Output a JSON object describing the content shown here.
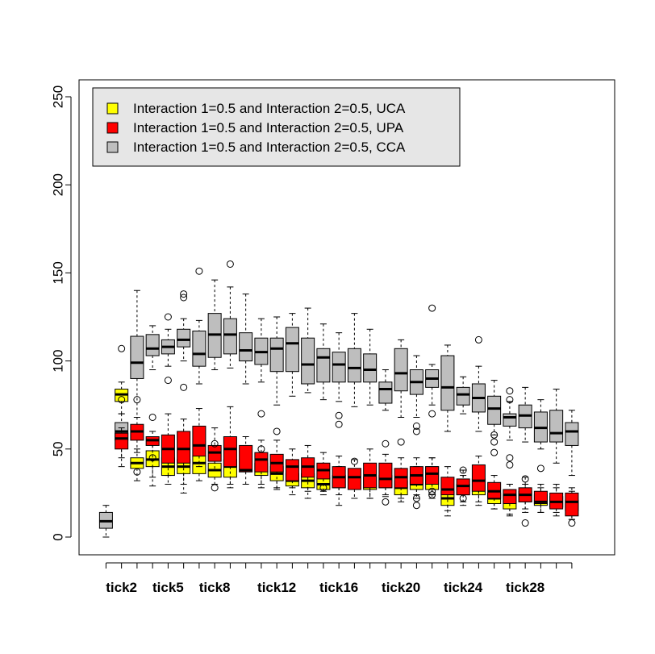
{
  "chart_data": {
    "type": "boxplot",
    "title": "",
    "xlabel": "",
    "ylabel": "",
    "ylim": [
      -10,
      260
    ],
    "yticks": [
      0,
      50,
      100,
      150,
      200,
      250
    ],
    "grid": false,
    "legend_position": "top-left",
    "x_tick_labels": [
      "tick2",
      "tick5",
      "tick8",
      "tick12",
      "tick16",
      "tick20",
      "tick24",
      "tick28"
    ],
    "series": [
      {
        "name": "Interaction 1=0.5 and Interaction 2=0.5, UCA",
        "color": "#ffff00"
      },
      {
        "name": "Interaction 1=0.5 and Interaction 2=0.5, UPA",
        "color": "#ff0000"
      },
      {
        "name": "Interaction 1=0.5 and Interaction 2=0.5, CCA",
        "color": "#bebebe"
      }
    ],
    "boxes": [
      {
        "tick": "tick1",
        "series": "CCA",
        "whisker_low": 0,
        "q1": 5,
        "median": 9,
        "q3": 14,
        "whisker_high": 18,
        "outliers": []
      },
      {
        "tick": "tick2",
        "series": "UCA",
        "whisker_low": 70,
        "q1": 77,
        "median": 81,
        "q3": 84,
        "whisker_high": 88,
        "outliers": [
          78
        ]
      },
      {
        "tick": "tick2",
        "series": "UPA",
        "whisker_low": 40,
        "q1": 50,
        "median": 56,
        "q3": 59,
        "whisker_high": 62,
        "outliers": []
      },
      {
        "tick": "tick2",
        "series": "CCA",
        "whisker_low": 45,
        "q1": 55,
        "median": 60,
        "q3": 65,
        "whisker_high": 70,
        "outliers": [
          107
        ]
      },
      {
        "tick": "tick3",
        "series": "UCA",
        "whisker_low": 32,
        "q1": 39,
        "median": 42,
        "q3": 45,
        "whisker_high": 50,
        "outliers": []
      },
      {
        "tick": "tick3",
        "series": "UPA",
        "whisker_low": 48,
        "q1": 55,
        "median": 60,
        "q3": 64,
        "whisker_high": 68,
        "outliers": [
          78,
          37
        ]
      },
      {
        "tick": "tick3",
        "series": "CCA",
        "whisker_low": 68,
        "q1": 90,
        "median": 99,
        "q3": 114,
        "whisker_high": 140,
        "outliers": []
      },
      {
        "tick": "tick4",
        "series": "UCA",
        "whisker_low": 34,
        "q1": 40,
        "median": 44,
        "q3": 49,
        "whisker_high": 55,
        "outliers": [
          45
        ]
      },
      {
        "tick": "tick4",
        "series": "UPA",
        "whisker_low": 29,
        "q1": 52,
        "median": 55,
        "q3": 57,
        "whisker_high": 60,
        "outliers": [
          68
        ]
      },
      {
        "tick": "tick4",
        "series": "CCA",
        "whisker_low": 95,
        "q1": 103,
        "median": 107,
        "q3": 115,
        "whisker_high": 120,
        "outliers": []
      },
      {
        "tick": "tick5",
        "series": "UCA",
        "whisker_low": 30,
        "q1": 35,
        "median": 40,
        "q3": 45,
        "whisker_high": 52,
        "outliers": []
      },
      {
        "tick": "tick5",
        "series": "UPA",
        "whisker_low": 35,
        "q1": 42,
        "median": 50,
        "q3": 58,
        "whisker_high": 70,
        "outliers": []
      },
      {
        "tick": "tick5",
        "series": "CCA",
        "whisker_low": 97,
        "q1": 104,
        "median": 108,
        "q3": 112,
        "whisker_high": 118,
        "outliers": [
          125,
          89
        ]
      },
      {
        "tick": "tick6",
        "series": "UCA",
        "whisker_low": 30,
        "q1": 36,
        "median": 40,
        "q3": 44,
        "whisker_high": 52,
        "outliers": []
      },
      {
        "tick": "tick6",
        "series": "UPA",
        "whisker_low": 25,
        "q1": 42,
        "median": 50,
        "q3": 60,
        "whisker_high": 67,
        "outliers": []
      },
      {
        "tick": "tick6",
        "series": "CCA",
        "whisker_low": 100,
        "q1": 108,
        "median": 112,
        "q3": 118,
        "whisker_high": 124,
        "outliers": [
          138,
          136,
          85
        ]
      },
      {
        "tick": "tick7",
        "series": "UCA",
        "whisker_low": 32,
        "q1": 36,
        "median": 42,
        "q3": 46,
        "whisker_high": 55,
        "outliers": []
      },
      {
        "tick": "tick7",
        "series": "UPA",
        "whisker_low": 40,
        "q1": 46,
        "median": 52,
        "q3": 63,
        "whisker_high": 73,
        "outliers": []
      },
      {
        "tick": "tick7",
        "series": "CCA",
        "whisker_low": 87,
        "q1": 97,
        "median": 104,
        "q3": 117,
        "whisker_high": 123,
        "outliers": [
          151
        ]
      },
      {
        "tick": "tick8",
        "series": "UCA",
        "whisker_low": 30,
        "q1": 34,
        "median": 38,
        "q3": 42,
        "whisker_high": 48,
        "outliers": [
          28
        ]
      },
      {
        "tick": "tick8",
        "series": "UPA",
        "whisker_low": 38,
        "q1": 43,
        "median": 48,
        "q3": 52,
        "whisker_high": 62,
        "outliers": [
          53
        ]
      },
      {
        "tick": "tick8",
        "series": "CCA",
        "whisker_low": 95,
        "q1": 102,
        "median": 115,
        "q3": 127,
        "whisker_high": 146,
        "outliers": []
      },
      {
        "tick": "tick9",
        "series": "UCA",
        "whisker_low": 28,
        "q1": 34,
        "median": 40,
        "q3": 44,
        "whisker_high": 50,
        "outliers": []
      },
      {
        "tick": "tick9",
        "series": "UPA",
        "whisker_low": 30,
        "q1": 40,
        "median": 50,
        "q3": 57,
        "whisker_high": 74,
        "outliers": []
      },
      {
        "tick": "tick9",
        "series": "CCA",
        "whisker_low": 96,
        "q1": 104,
        "median": 115,
        "q3": 124,
        "whisker_high": 142,
        "outliers": [
          155
        ]
      },
      {
        "tick": "tick10",
        "series": "UPA",
        "whisker_low": 30,
        "q1": 37,
        "median": 38,
        "q3": 52,
        "whisker_high": 57,
        "outliers": []
      },
      {
        "tick": "tick10",
        "series": "CCA",
        "whisker_low": 87,
        "q1": 100,
        "median": 106,
        "q3": 116,
        "whisker_high": 138,
        "outliers": []
      },
      {
        "tick": "tick11",
        "series": "UCA",
        "whisker_low": 30,
        "q1": 35,
        "median": 38,
        "q3": 42,
        "whisker_high": 48,
        "outliers": [
          50
        ]
      },
      {
        "tick": "tick11",
        "series": "UPA",
        "whisker_low": 28,
        "q1": 37,
        "median": 44,
        "q3": 48,
        "whisker_high": 55,
        "outliers": []
      },
      {
        "tick": "tick11",
        "series": "CCA",
        "whisker_low": 88,
        "q1": 98,
        "median": 105,
        "q3": 113,
        "whisker_high": 124,
        "outliers": [
          70
        ]
      },
      {
        "tick": "tick12",
        "series": "UCA",
        "whisker_low": 28,
        "q1": 32,
        "median": 36,
        "q3": 40,
        "whisker_high": 46,
        "outliers": [
          60
        ]
      },
      {
        "tick": "tick12",
        "series": "UPA",
        "whisker_low": 27,
        "q1": 37,
        "median": 42,
        "q3": 47,
        "whisker_high": 55,
        "outliers": []
      },
      {
        "tick": "tick12",
        "series": "CCA",
        "whisker_low": 75,
        "q1": 94,
        "median": 107,
        "q3": 113,
        "whisker_high": 125,
        "outliers": []
      },
      {
        "tick": "tick13",
        "series": "UCA",
        "whisker_low": 24,
        "q1": 29,
        "median": 32,
        "q3": 36,
        "whisker_high": 40,
        "outliers": []
      },
      {
        "tick": "tick13",
        "series": "UPA",
        "whisker_low": 28,
        "q1": 32,
        "median": 40,
        "q3": 44,
        "whisker_high": 50,
        "outliers": []
      },
      {
        "tick": "tick13",
        "series": "CCA",
        "whisker_low": 80,
        "q1": 94,
        "median": 110,
        "q3": 119,
        "whisker_high": 127,
        "outliers": []
      },
      {
        "tick": "tick14",
        "series": "UCA",
        "whisker_low": 22,
        "q1": 28,
        "median": 32,
        "q3": 36,
        "whisker_high": 44,
        "outliers": []
      },
      {
        "tick": "tick14",
        "series": "UPA",
        "whisker_low": 26,
        "q1": 34,
        "median": 40,
        "q3": 45,
        "whisker_high": 52,
        "outliers": []
      },
      {
        "tick": "tick14",
        "series": "CCA",
        "whisker_low": 82,
        "q1": 87,
        "median": 98,
        "q3": 113,
        "whisker_high": 130,
        "outliers": []
      },
      {
        "tick": "tick15",
        "series": "UCA",
        "whisker_low": 24,
        "q1": 27,
        "median": 30,
        "q3": 34,
        "whisker_high": 38,
        "outliers": [
          28
        ]
      },
      {
        "tick": "tick15",
        "series": "UPA",
        "whisker_low": 26,
        "q1": 33,
        "median": 38,
        "q3": 42,
        "whisker_high": 48,
        "outliers": []
      },
      {
        "tick": "tick15",
        "series": "CCA",
        "whisker_low": 78,
        "q1": 88,
        "median": 102,
        "q3": 107,
        "whisker_high": 121,
        "outliers": []
      },
      {
        "tick": "tick16",
        "series": "UCA",
        "whisker_low": 24,
        "q1": 28,
        "median": 31,
        "q3": 35,
        "whisker_high": 40,
        "outliers": []
      },
      {
        "tick": "tick16",
        "series": "UPA",
        "whisker_low": 18,
        "q1": 28,
        "median": 34,
        "q3": 40,
        "whisker_high": 46,
        "outliers": []
      },
      {
        "tick": "tick16",
        "series": "CCA",
        "whisker_low": 77,
        "q1": 88,
        "median": 98,
        "q3": 105,
        "whisker_high": 116,
        "outliers": [
          69,
          64
        ]
      },
      {
        "tick": "tick17",
        "series": "UPA",
        "whisker_low": 22,
        "q1": 27,
        "median": 34,
        "q3": 39,
        "whisker_high": 44,
        "outliers": [
          43
        ]
      },
      {
        "tick": "tick17",
        "series": "CCA",
        "whisker_low": 74,
        "q1": 88,
        "median": 96,
        "q3": 107,
        "whisker_high": 127,
        "outliers": []
      },
      {
        "tick": "tick18",
        "series": "UCA",
        "whisker_low": 22,
        "q1": 27,
        "median": 30,
        "q3": 34,
        "whisker_high": 40,
        "outliers": []
      },
      {
        "tick": "tick18",
        "series": "UPA",
        "whisker_low": 22,
        "q1": 28,
        "median": 35,
        "q3": 42,
        "whisker_high": 50,
        "outliers": []
      },
      {
        "tick": "tick18",
        "series": "CCA",
        "whisker_low": 75,
        "q1": 88,
        "median": 95,
        "q3": 104,
        "whisker_high": 118,
        "outliers": []
      },
      {
        "tick": "tick19",
        "series": "UCA",
        "whisker_low": 24,
        "q1": 28,
        "median": 31,
        "q3": 35,
        "whisker_high": 40,
        "outliers": [
          20
        ]
      },
      {
        "tick": "tick19",
        "series": "UPA",
        "whisker_low": 23,
        "q1": 28,
        "median": 33,
        "q3": 42,
        "whisker_high": 47,
        "outliers": [
          53
        ]
      },
      {
        "tick": "tick19",
        "series": "CCA",
        "whisker_low": 72,
        "q1": 76,
        "median": 84,
        "q3": 88,
        "whisker_high": 95,
        "outliers": []
      },
      {
        "tick": "tick20",
        "series": "UCA",
        "whisker_low": 20,
        "q1": 24,
        "median": 28,
        "q3": 32,
        "whisker_high": 37,
        "outliers": []
      },
      {
        "tick": "tick20",
        "series": "UPA",
        "whisker_low": 22,
        "q1": 28,
        "median": 34,
        "q3": 39,
        "whisker_high": 45,
        "outliers": [
          54
        ]
      },
      {
        "tick": "tick20",
        "series": "CCA",
        "whisker_low": 68,
        "q1": 83,
        "median": 93,
        "q3": 107,
        "whisker_high": 112,
        "outliers": []
      },
      {
        "tick": "tick21",
        "series": "UCA",
        "whisker_low": 22,
        "q1": 27,
        "median": 30,
        "q3": 34,
        "whisker_high": 40,
        "outliers": [
          22,
          18
        ]
      },
      {
        "tick": "tick21",
        "series": "UPA",
        "whisker_low": 24,
        "q1": 30,
        "median": 35,
        "q3": 40,
        "whisker_high": 45,
        "outliers": []
      },
      {
        "tick": "tick21",
        "series": "CCA",
        "whisker_low": 68,
        "q1": 81,
        "median": 88,
        "q3": 95,
        "whisker_high": 103,
        "outliers": [
          63,
          60
        ]
      },
      {
        "tick": "tick22",
        "series": "UCA",
        "whisker_low": 22,
        "q1": 27,
        "median": 32,
        "q3": 40,
        "whisker_high": 45,
        "outliers": [
          24,
          26
        ]
      },
      {
        "tick": "tick22",
        "series": "UPA",
        "whisker_low": 24,
        "q1": 30,
        "median": 36,
        "q3": 40,
        "whisker_high": 45,
        "outliers": []
      },
      {
        "tick": "tick22",
        "series": "CCA",
        "whisker_low": 75,
        "q1": 85,
        "median": 90,
        "q3": 95,
        "whisker_high": 98,
        "outliers": [
          130,
          70
        ]
      },
      {
        "tick": "tick23",
        "series": "UCA",
        "whisker_low": 12,
        "q1": 18,
        "median": 22,
        "q3": 26,
        "whisker_high": 32,
        "outliers": []
      },
      {
        "tick": "tick23",
        "series": "UPA",
        "whisker_low": 15,
        "q1": 24,
        "median": 27,
        "q3": 34,
        "whisker_high": 40,
        "outliers": []
      },
      {
        "tick": "tick23",
        "series": "CCA",
        "whisker_low": 60,
        "q1": 72,
        "median": 85,
        "q3": 103,
        "whisker_high": 109,
        "outliers": []
      },
      {
        "tick": "tick24",
        "series": "UCA",
        "whisker_low": 20,
        "q1": 24,
        "median": 27,
        "q3": 30,
        "whisker_high": 35,
        "outliers": [
          38,
          22
        ]
      },
      {
        "tick": "tick24",
        "series": "UPA",
        "whisker_low": 18,
        "q1": 24,
        "median": 29,
        "q3": 33,
        "whisker_high": 38,
        "outliers": []
      },
      {
        "tick": "tick24",
        "series": "CCA",
        "whisker_low": 70,
        "q1": 75,
        "median": 81,
        "q3": 85,
        "whisker_high": 91,
        "outliers": []
      },
      {
        "tick": "tick25",
        "series": "UCA",
        "whisker_low": 18,
        "q1": 24,
        "median": 29,
        "q3": 33,
        "whisker_high": 40,
        "outliers": []
      },
      {
        "tick": "tick25",
        "series": "UPA",
        "whisker_low": 20,
        "q1": 26,
        "median": 32,
        "q3": 41,
        "whisker_high": 46,
        "outliers": []
      },
      {
        "tick": "tick25",
        "series": "CCA",
        "whisker_low": 60,
        "q1": 71,
        "median": 79,
        "q3": 87,
        "whisker_high": 97,
        "outliers": [
          112
        ]
      },
      {
        "tick": "tick26",
        "series": "UCA",
        "whisker_low": 16,
        "q1": 19,
        "median": 22,
        "q3": 25,
        "whisker_high": 30,
        "outliers": []
      },
      {
        "tick": "tick26",
        "series": "UPA",
        "whisker_low": 16,
        "q1": 22,
        "median": 26,
        "q3": 31,
        "whisker_high": 35,
        "outliers": [
          58,
          54,
          48
        ]
      },
      {
        "tick": "tick26",
        "series": "CCA",
        "whisker_low": 58,
        "q1": 64,
        "median": 73,
        "q3": 80,
        "whisker_high": 89,
        "outliers": []
      },
      {
        "tick": "tick27",
        "series": "UCA",
        "whisker_low": 12,
        "q1": 16,
        "median": 20,
        "q3": 24,
        "whisker_high": 30,
        "outliers": []
      },
      {
        "tick": "tick27",
        "series": "UPA",
        "whisker_low": 13,
        "q1": 19,
        "median": 24,
        "q3": 27,
        "whisker_high": 30,
        "outliers": [
          45,
          41
        ]
      },
      {
        "tick": "tick27",
        "series": "CCA",
        "whisker_low": 55,
        "q1": 63,
        "median": 68,
        "q3": 70,
        "whisker_high": 77,
        "outliers": [
          83,
          78
        ]
      },
      {
        "tick": "tick28",
        "series": "UCA",
        "whisker_low": 16,
        "q1": 20,
        "median": 23,
        "q3": 26,
        "whisker_high": 30,
        "outliers": []
      },
      {
        "tick": "tick28",
        "series": "UPA",
        "whisker_low": 14,
        "q1": 20,
        "median": 24,
        "q3": 28,
        "whisker_high": 34,
        "outliers": [
          33,
          8
        ]
      },
      {
        "tick": "tick28",
        "series": "CCA",
        "whisker_low": 54,
        "q1": 62,
        "median": 69,
        "q3": 75,
        "whisker_high": 85,
        "outliers": []
      },
      {
        "tick": "tick29",
        "series": "UCA",
        "whisker_low": 14,
        "q1": 18,
        "median": 21,
        "q3": 24,
        "whisker_high": 28,
        "outliers": []
      },
      {
        "tick": "tick29",
        "series": "UPA",
        "whisker_low": 14,
        "q1": 19,
        "median": 20,
        "q3": 26,
        "whisker_high": 30,
        "outliers": [
          39
        ]
      },
      {
        "tick": "tick29",
        "series": "CCA",
        "whisker_low": 50,
        "q1": 54,
        "median": 62,
        "q3": 71,
        "whisker_high": 78,
        "outliers": []
      },
      {
        "tick": "tick30",
        "series": "UCA",
        "whisker_low": 14,
        "q1": 17,
        "median": 20,
        "q3": 23,
        "whisker_high": 28,
        "outliers": []
      },
      {
        "tick": "tick30",
        "series": "UPA",
        "whisker_low": 12,
        "q1": 16,
        "median": 20,
        "q3": 25,
        "whisker_high": 30,
        "outliers": []
      },
      {
        "tick": "tick30",
        "series": "CCA",
        "whisker_low": 42,
        "q1": 54,
        "median": 59,
        "q3": 72,
        "whisker_high": 84,
        "outliers": []
      },
      {
        "tick": "tick31",
        "series": "UCA",
        "whisker_low": 10,
        "q1": 15,
        "median": 18,
        "q3": 21,
        "whisker_high": 26,
        "outliers": []
      },
      {
        "tick": "tick31",
        "series": "UPA",
        "whisker_low": 10,
        "q1": 12,
        "median": 20,
        "q3": 25,
        "whisker_high": 28,
        "outliers": [
          8
        ]
      },
      {
        "tick": "tick31",
        "series": "CCA",
        "whisker_low": 35,
        "q1": 52,
        "median": 60,
        "q3": 65,
        "whisker_high": 72,
        "outliers": []
      }
    ]
  }
}
